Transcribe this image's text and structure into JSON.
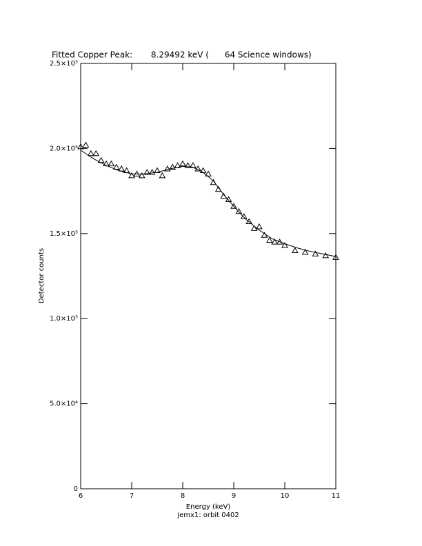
{
  "chart_data": {
    "type": "scatter",
    "title": "Fitted Copper Peak:       8.29492 keV (      64 Science windows)",
    "x_label": "Energy (keV)",
    "y_label": "Detector counts",
    "subtitle": "jemx1: orbit 0402",
    "xlim": [
      6,
      11
    ],
    "xticks": [
      6,
      7,
      8,
      9,
      10,
      11
    ],
    "ylim": [
      0,
      250000
    ],
    "yticks": [
      0,
      {
        "value": 50000,
        "label": "5.0×10⁴"
      },
      {
        "value": 100000,
        "label": "1.0×10⁵"
      },
      {
        "value": 150000,
        "label": "1.5×10⁵"
      },
      {
        "value": 200000,
        "label": "2.0×10⁵"
      },
      {
        "value": 250000,
        "label": "2.5×10⁵"
      }
    ],
    "grid": false,
    "series": [
      {
        "marker": "triangle",
        "color": "#000000",
        "x": [
          6.0,
          6.1,
          6.2,
          6.3,
          6.4,
          6.5,
          6.6,
          6.7,
          6.8,
          6.9,
          7.0,
          7.1,
          7.2,
          7.3,
          7.4,
          7.5,
          7.6,
          7.7,
          7.8,
          7.9,
          8.0,
          8.1,
          8.2,
          8.3,
          8.4,
          8.5,
          8.6,
          8.7,
          8.8,
          8.9,
          9.0,
          9.1,
          9.2,
          9.3,
          9.4,
          9.5,
          9.6,
          9.7,
          9.8,
          9.9,
          10.0,
          10.2,
          10.4,
          10.6,
          10.8,
          11.0
        ],
        "values": [
          201000,
          202000,
          197000,
          197000,
          193000,
          191000,
          191000,
          189000,
          188000,
          187000,
          184000,
          185000,
          184000,
          186000,
          186000,
          187000,
          184000,
          188000,
          189000,
          190000,
          191000,
          190000,
          190000,
          188000,
          187000,
          185000,
          180000,
          176000,
          172000,
          170000,
          166000,
          163000,
          160000,
          157000,
          153000,
          154000,
          149000,
          146000,
          145000,
          145000,
          143000,
          140000,
          139000,
          138000,
          137000,
          136000
        ]
      },
      {
        "marker": "line",
        "color": "#000000",
        "x": [
          6.0,
          6.25,
          6.5,
          6.75,
          7.0,
          7.25,
          7.5,
          7.75,
          8.0,
          8.2,
          8.4,
          8.6,
          8.8,
          9.0,
          9.25,
          9.5,
          9.75,
          10.0,
          10.25,
          10.5,
          10.75,
          11.0
        ],
        "values": [
          199000,
          194000,
          190000,
          187000,
          185000,
          185000,
          186000,
          188000,
          189500,
          189000,
          186000,
          181000,
          173000,
          166000,
          158000,
          152000,
          147000,
          144000,
          141500,
          139500,
          138000,
          136500
        ]
      }
    ]
  }
}
